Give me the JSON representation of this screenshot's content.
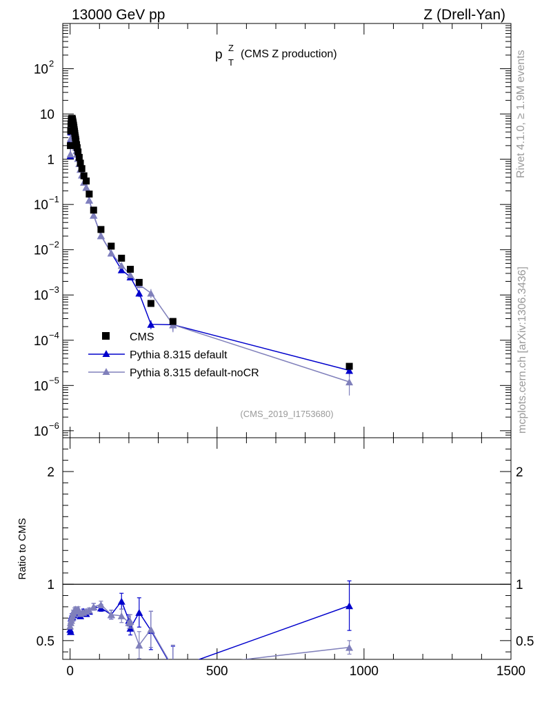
{
  "header": {
    "left": "13000 GeV pp",
    "right": "Z (Drell-Yan)"
  },
  "side": {
    "top": "Rivet 4.1.0, ≥ 1.9M events",
    "bottom": "mcplots.cern.ch [arXiv:1306.3436]"
  },
  "chart_data": [
    {
      "type": "scatter",
      "panel": "main",
      "title_main": "p",
      "title_sup": "Z",
      "title_sub": "T",
      "title_rest": "(CMS Z production)",
      "analysis_tag": "(CMS_2019_I1753680)",
      "yscale": "log",
      "xlim": [
        -25,
        1500
      ],
      "ylim": [
        7e-07,
        1000
      ],
      "ytick_labels": [
        {
          "base": "10",
          "exp": "2"
        },
        {
          "base": "10",
          "exp": ""
        },
        {
          "base": "1",
          "exp": ""
        },
        {
          "base": "10",
          "exp": "−1"
        },
        {
          "base": "10",
          "exp": "−2"
        },
        {
          "base": "10",
          "exp": "−3"
        },
        {
          "base": "10",
          "exp": "−4"
        },
        {
          "base": "10",
          "exp": "−5"
        },
        {
          "base": "10",
          "exp": "−6"
        }
      ],
      "legend": [
        "CMS",
        "Pythia 8.315 default",
        "Pythia 8.315 default-noCR"
      ],
      "series": [
        {
          "name": "CMS",
          "color": "#000000",
          "marker": "square",
          "x": [
            1,
            2,
            3,
            4,
            5,
            6,
            7,
            8,
            9,
            10,
            11,
            12,
            13,
            14,
            15,
            16,
            17,
            18,
            19,
            20,
            22,
            24,
            27,
            31,
            35,
            40,
            47,
            55,
            65,
            80,
            105,
            140,
            175,
            205,
            235,
            275,
            350,
            950
          ],
          "y": [
            2.0,
            4.2,
            6.0,
            7.2,
            7.8,
            8.0,
            8.0,
            7.6,
            7.0,
            6.5,
            6.0,
            5.5,
            5.0,
            4.5,
            4.1,
            3.7,
            3.3,
            3.0,
            2.75,
            2.5,
            2.1,
            1.8,
            1.45,
            1.1,
            0.82,
            0.62,
            0.43,
            0.33,
            0.17,
            0.075,
            0.028,
            0.012,
            0.0065,
            0.0037,
            0.0019,
            0.00065,
            0.00026,
            2.65e-05
          ]
        },
        {
          "name": "Pythia 8.315 default",
          "color": "#0000cc",
          "marker": "triangle",
          "x": [
            1,
            2,
            3,
            4,
            5,
            6,
            7,
            8,
            9,
            10,
            11,
            12,
            13,
            14,
            15,
            16,
            17,
            18,
            19,
            20,
            22,
            24,
            27,
            31,
            35,
            40,
            47,
            55,
            65,
            80,
            105,
            140,
            175,
            205,
            235,
            275,
            350,
            950
          ],
          "y": [
            1.2,
            2.7,
            4.0,
            5.0,
            5.5,
            5.7,
            5.6,
            5.3,
            4.9,
            4.6,
            4.3,
            3.9,
            3.6,
            3.3,
            3.0,
            2.75,
            2.5,
            2.2,
            2.0,
            1.85,
            1.55,
            1.3,
            1.05,
            0.8,
            0.6,
            0.45,
            0.31,
            0.24,
            0.125,
            0.058,
            0.0205,
            0.0085,
            0.0036,
            0.0025,
            0.0011,
            0.000225,
            0.00022,
            2.15e-05
          ],
          "yerr": [
            0,
            0,
            0,
            0,
            0,
            0,
            0,
            0,
            0,
            0,
            0,
            0,
            0,
            0,
            0,
            0,
            0,
            0,
            0,
            0,
            0,
            0,
            0,
            0,
            0,
            0,
            0,
            0,
            0,
            0,
            0,
            0,
            0.0003,
            0.0004,
            0.0002,
            5e-05,
            6e-05,
            6e-06
          ]
        },
        {
          "name": "Pythia 8.315 default-noCR",
          "color": "#8080bb",
          "marker": "triangle",
          "x": [
            1,
            2,
            3,
            4,
            5,
            6,
            7,
            8,
            9,
            10,
            11,
            12,
            13,
            14,
            15,
            16,
            17,
            18,
            19,
            20,
            22,
            24,
            27,
            31,
            35,
            40,
            47,
            55,
            65,
            80,
            105,
            140,
            175,
            205,
            235,
            275,
            350,
            950
          ],
          "y": [
            1.3,
            2.9,
            4.2,
            5.1,
            5.6,
            5.8,
            5.7,
            5.3,
            4.9,
            4.6,
            4.3,
            3.9,
            3.6,
            3.3,
            3.0,
            2.75,
            2.5,
            2.2,
            2.0,
            1.85,
            1.55,
            1.3,
            1.05,
            0.8,
            0.6,
            0.45,
            0.31,
            0.24,
            0.125,
            0.058,
            0.0205,
            0.0085,
            0.0045,
            0.0028,
            0.0017,
            0.0011,
            0.00022,
            1.2e-05
          ],
          "yerr": [
            0,
            0,
            0,
            0,
            0,
            0,
            0,
            0,
            0,
            0,
            0,
            0,
            0,
            0,
            0,
            0,
            0,
            0,
            0,
            0,
            0,
            0,
            0,
            0,
            0,
            0,
            0,
            0,
            0,
            0,
            0,
            0,
            0.0004,
            0.0004,
            0.0003,
            0.00025,
            7e-05,
            6e-06
          ]
        }
      ]
    },
    {
      "type": "scatter",
      "panel": "ratio",
      "ylabel": "Ratio to CMS",
      "xlim": [
        -25,
        1500
      ],
      "ylim": [
        0.3336,
        2.3
      ],
      "xtick_labels": [
        "0",
        "500",
        "1000",
        "1500"
      ],
      "ytick_labels": [
        "0.5",
        "1",
        "2"
      ],
      "reference_line": 1,
      "series": [
        {
          "name": "Pythia 8.315 default",
          "color": "#0000cc",
          "x": [
            0,
            2,
            4,
            6,
            8,
            10,
            12,
            15,
            18,
            20,
            24,
            28,
            35,
            45,
            55,
            65,
            80,
            105,
            140,
            175,
            200,
            205,
            235,
            275,
            350,
            950
          ],
          "y": [
            0.6,
            0.58,
            0.7,
            0.72,
            0.71,
            0.73,
            0.73,
            0.74,
            0.76,
            0.74,
            0.76,
            0.75,
            0.72,
            0.76,
            0.74,
            0.76,
            0.8,
            0.79,
            0.73,
            0.85,
            0.68,
            0.61,
            0.75,
            0.59,
            0.25,
            0.81
          ],
          "yerr": [
            0.02,
            0.02,
            0.02,
            0.02,
            0.02,
            0.02,
            0.02,
            0.02,
            0.02,
            0.02,
            0.02,
            0.02,
            0.02,
            0.02,
            0.02,
            0.02,
            0.03,
            0.03,
            0.04,
            0.07,
            0.05,
            0.06,
            0.13,
            0.17,
            0.2,
            0.22
          ]
        },
        {
          "name": "Pythia 8.315 default-noCR",
          "color": "#8080bb",
          "x": [
            0,
            2,
            4,
            6,
            8,
            10,
            12,
            15,
            18,
            20,
            24,
            28,
            35,
            45,
            55,
            65,
            80,
            105,
            140,
            175,
            200,
            205,
            235,
            275,
            350,
            950
          ],
          "y": [
            0.63,
            0.66,
            0.68,
            0.7,
            0.72,
            0.75,
            0.74,
            0.77,
            0.78,
            0.76,
            0.77,
            0.78,
            0.74,
            0.75,
            0.76,
            0.77,
            0.8,
            0.82,
            0.73,
            0.72,
            0.66,
            0.67,
            0.46,
            0.6,
            0.26,
            0.44
          ],
          "yerr": [
            0.02,
            0.02,
            0.02,
            0.02,
            0.02,
            0.02,
            0.02,
            0.02,
            0.02,
            0.02,
            0.02,
            0.02,
            0.02,
            0.02,
            0.02,
            0.02,
            0.03,
            0.03,
            0.04,
            0.06,
            0.05,
            0.06,
            0.12,
            0.16,
            0.2,
            0.06
          ]
        }
      ]
    }
  ]
}
